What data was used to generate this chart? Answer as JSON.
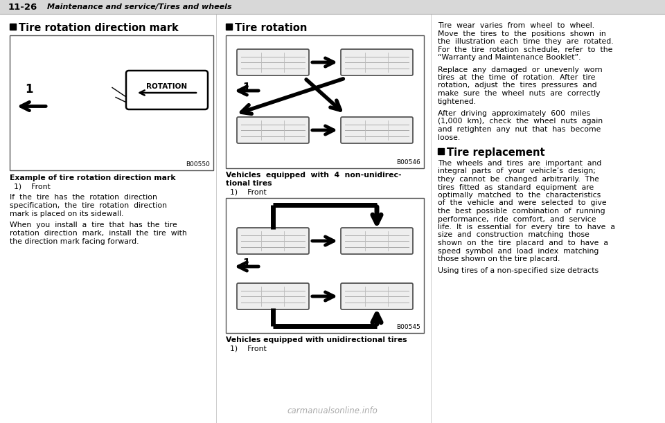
{
  "bg_color": "#ffffff",
  "header_text": "11-26",
  "header_subtext": "Maintenance and service/Tires and wheels",
  "col1_heading": "Tire rotation direction mark",
  "col2_heading": "Tire rotation",
  "col3_heading_tire_replacement": "Tire replacement",
  "footer_watermark": "carmanualsonline.info",
  "col3_para1_lines": [
    "Tire  wear  varies  from  wheel  to  wheel.",
    "Move  the  tires  to  the  positions  shown  in",
    "the  illustration  each  time  they  are  rotated.",
    "For  the  tire  rotation  schedule,  refer  to  the",
    "“Warranty and Maintenance Booklet”."
  ],
  "col3_para2_lines": [
    "Replace  any  damaged  or  unevenly  worn",
    "tires  at  the  time  of  rotation.  After  tire",
    "rotation,  adjust  the  tires  pressures  and",
    "make  sure  the  wheel  nuts  are  correctly",
    "tightened."
  ],
  "col3_para3_lines": [
    "After  driving  approximately  600  miles",
    "(1,000  km),  check  the  wheel  nuts  again",
    "and  retighten  any  nut  that  has  become",
    "loose."
  ],
  "col3_tire_replacement_lines": [
    "The  wheels  and  tires  are  important  and",
    "integral  parts  of  your  vehicle’s  design;",
    "they  cannot  be  changed  arbitrarily.  The",
    "tires  fitted  as  standard  equipment  are",
    "optimally  matched  to  the  characteristics",
    "of  the  vehicle  and  were  selected  to  give",
    "the  best  possible  combination  of  running",
    "performance,  ride  comfort,  and  service",
    "life.  It  is  essential  for  every  tire  to  have  a",
    "size  and  construction  matching  those",
    "shown  on  the  tire  placard  and  to  have  a",
    "speed  symbol  and  load  index  matching",
    "those shown on the tire placard."
  ],
  "col3_para_last": "Using tires of a non-specified size detracts",
  "col1_caption_bold": "Example of tire rotation direction mark",
  "col1_caption_item": "1)    Front",
  "col1_body_lines": [
    "If  the  tire  has  the  rotation  direction",
    "specification,  the  tire  rotation  direction",
    "mark is placed on its sidewall."
  ],
  "col1_body2_lines": [
    "When  you  install  a  tire  that  has  the  tire",
    "rotation  direction  mark,  install  the  tire  with",
    "the direction mark facing forward."
  ],
  "col2_cap1_line1": "Vehicles  equipped  with  4  non-unidirec-",
  "col2_cap1_line2": "tional tires",
  "col2_cap1_item": "1)    Front",
  "col2_cap2_bold": "Vehicles equipped with unidirectional tires",
  "col2_cap2_item": "1)    Front",
  "b00550": "B00550",
  "b00546": "B00546",
  "b00545": "B00545"
}
